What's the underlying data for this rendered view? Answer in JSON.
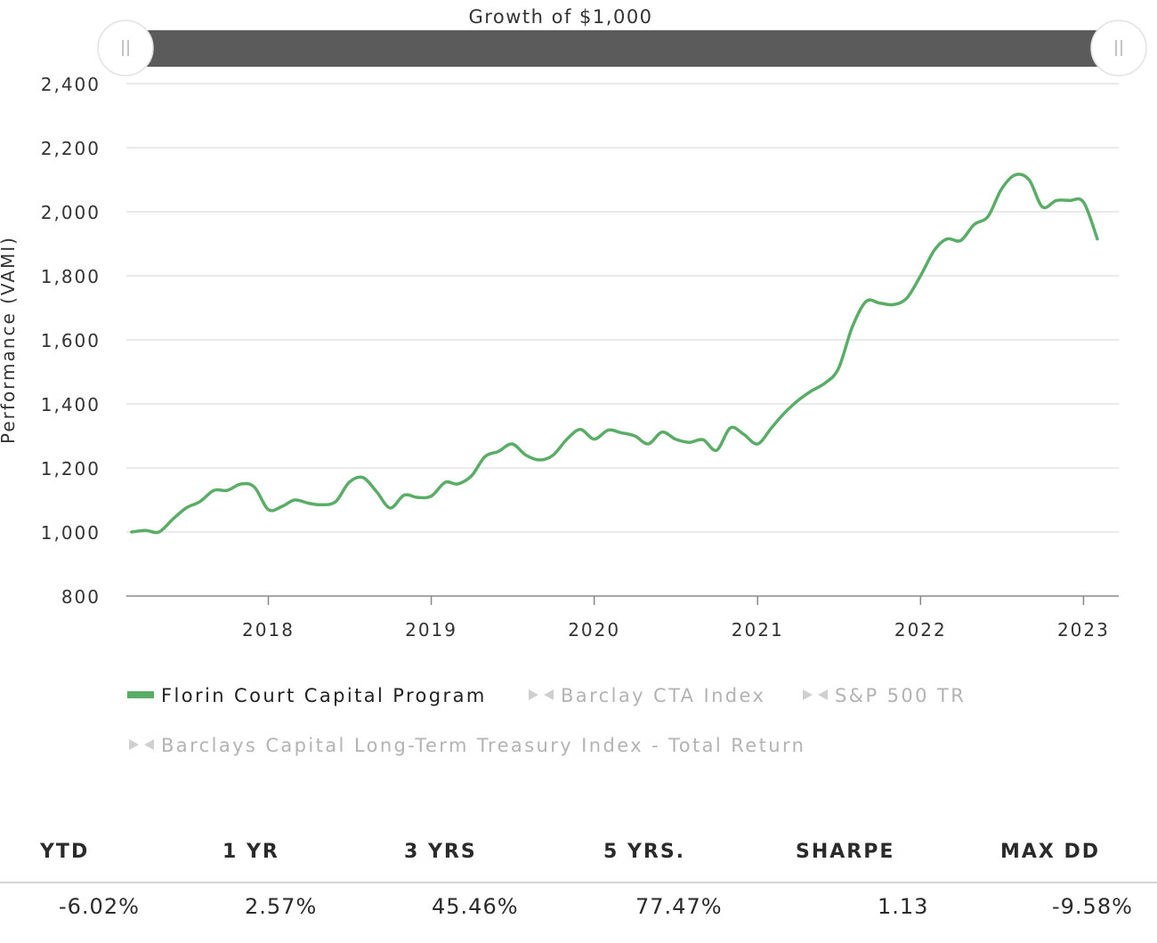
{
  "chart_data": {
    "type": "line",
    "title": "Growth of $1,000",
    "ylabel": "Performance (VAMI)",
    "xlabel": "",
    "ylim": [
      800,
      2400
    ],
    "yticks": [
      "800",
      "1,000",
      "1,200",
      "1,400",
      "1,600",
      "1,800",
      "2,000",
      "2,200",
      "2,400"
    ],
    "xticks": [
      "2018",
      "2019",
      "2020",
      "2021",
      "2022",
      "2023"
    ],
    "grid": true,
    "legend_position": "bottom",
    "series": [
      {
        "name": "Florin Court Capital Program",
        "color": "#5aad66",
        "visible": true,
        "x": [
          "2017-03",
          "2017-04",
          "2017-05",
          "2017-06",
          "2017-07",
          "2017-08",
          "2017-09",
          "2017-10",
          "2017-11",
          "2017-12",
          "2018-01",
          "2018-02",
          "2018-03",
          "2018-04",
          "2018-05",
          "2018-06",
          "2018-07",
          "2018-08",
          "2018-09",
          "2018-10",
          "2018-11",
          "2018-12",
          "2019-01",
          "2019-02",
          "2019-03",
          "2019-04",
          "2019-05",
          "2019-06",
          "2019-07",
          "2019-08",
          "2019-09",
          "2019-10",
          "2019-11",
          "2019-12",
          "2020-01",
          "2020-02",
          "2020-03",
          "2020-04",
          "2020-05",
          "2020-06",
          "2020-07",
          "2020-08",
          "2020-09",
          "2020-10",
          "2020-11",
          "2020-12",
          "2021-01",
          "2021-02",
          "2021-03",
          "2021-04",
          "2021-05",
          "2021-06",
          "2021-07",
          "2021-08",
          "2021-09",
          "2021-10",
          "2021-11",
          "2021-12",
          "2022-01",
          "2022-02",
          "2022-03",
          "2022-04",
          "2022-05",
          "2022-06",
          "2022-07",
          "2022-08",
          "2022-09",
          "2022-10",
          "2022-11",
          "2022-12",
          "2023-01",
          "2023-02"
        ],
        "values": [
          1000,
          1005,
          1000,
          1040,
          1075,
          1095,
          1130,
          1130,
          1150,
          1140,
          1070,
          1080,
          1100,
          1090,
          1085,
          1095,
          1155,
          1170,
          1125,
          1075,
          1115,
          1108,
          1112,
          1155,
          1150,
          1175,
          1235,
          1252,
          1275,
          1240,
          1225,
          1240,
          1290,
          1320,
          1290,
          1318,
          1310,
          1300,
          1275,
          1312,
          1290,
          1280,
          1288,
          1255,
          1325,
          1305,
          1275,
          1325,
          1370,
          1410,
          1440,
          1465,
          1510,
          1640,
          1720,
          1715,
          1710,
          1730,
          1800,
          1880,
          1915,
          1910,
          1960,
          1985,
          2070,
          2115,
          2100,
          2015,
          2035,
          2035,
          2030,
          1915
        ]
      },
      {
        "name": "Barclay CTA Index",
        "visible": false,
        "color": "#cccccc"
      },
      {
        "name": "S&P 500 TR",
        "visible": false,
        "color": "#cccccc"
      },
      {
        "name": "Barclays Capital Long-Term Treasury Index - Total Return",
        "visible": false,
        "color": "#cccccc"
      }
    ]
  },
  "stats": {
    "headers": [
      "YTD",
      "1 YR",
      "3 YRS",
      "5 YRS.",
      "SHARPE",
      "MAX DD"
    ],
    "values": [
      "-6.02%",
      "2.57%",
      "45.46%",
      "77.47%",
      "1.13",
      "-9.58%"
    ]
  }
}
